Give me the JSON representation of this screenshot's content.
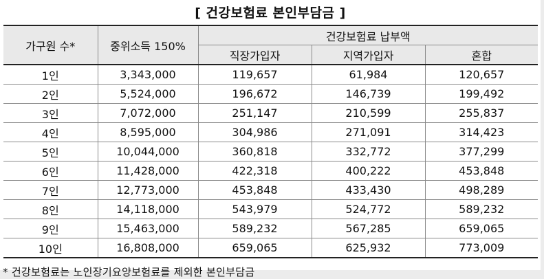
{
  "title": "[ 건강보험료 본인부담금 ]",
  "headers": {
    "household": "가구원 수*",
    "median_income": "중위소득 150%",
    "premium_group": "건강보험료 납부액",
    "workplace": "직장가입자",
    "regional": "지역가입자",
    "mixed": "혼합"
  },
  "rows": [
    [
      "1인",
      "3,343,000",
      "119,657",
      "61,984",
      "120,657"
    ],
    [
      "2인",
      "5,524,000",
      "196,672",
      "146,739",
      "199,492"
    ],
    [
      "3인",
      "7,072,000",
      "251,147",
      "210,599",
      "255,837"
    ],
    [
      "4인",
      "8,595,000",
      "304,986",
      "271,091",
      "314,423"
    ],
    [
      "5인",
      "10,044,000",
      "360,818",
      "332,772",
      "377,299"
    ],
    [
      "6인",
      "11,428,000",
      "422,318",
      "400,222",
      "453,848"
    ],
    [
      "7인",
      "12,773,000",
      "453,848",
      "433,430",
      "498,289"
    ],
    [
      "8인",
      "14,118,000",
      "543,979",
      "524,772",
      "589,232"
    ],
    [
      "9인",
      "15,463,000",
      "589,232",
      "567,285",
      "659,065"
    ],
    [
      "10인",
      "16,808,000",
      "659,065",
      "625,932",
      "773,009"
    ]
  ],
  "footnote": "* 건강보험료는 노인장기요양보험료를 제외한 본인부담금"
}
